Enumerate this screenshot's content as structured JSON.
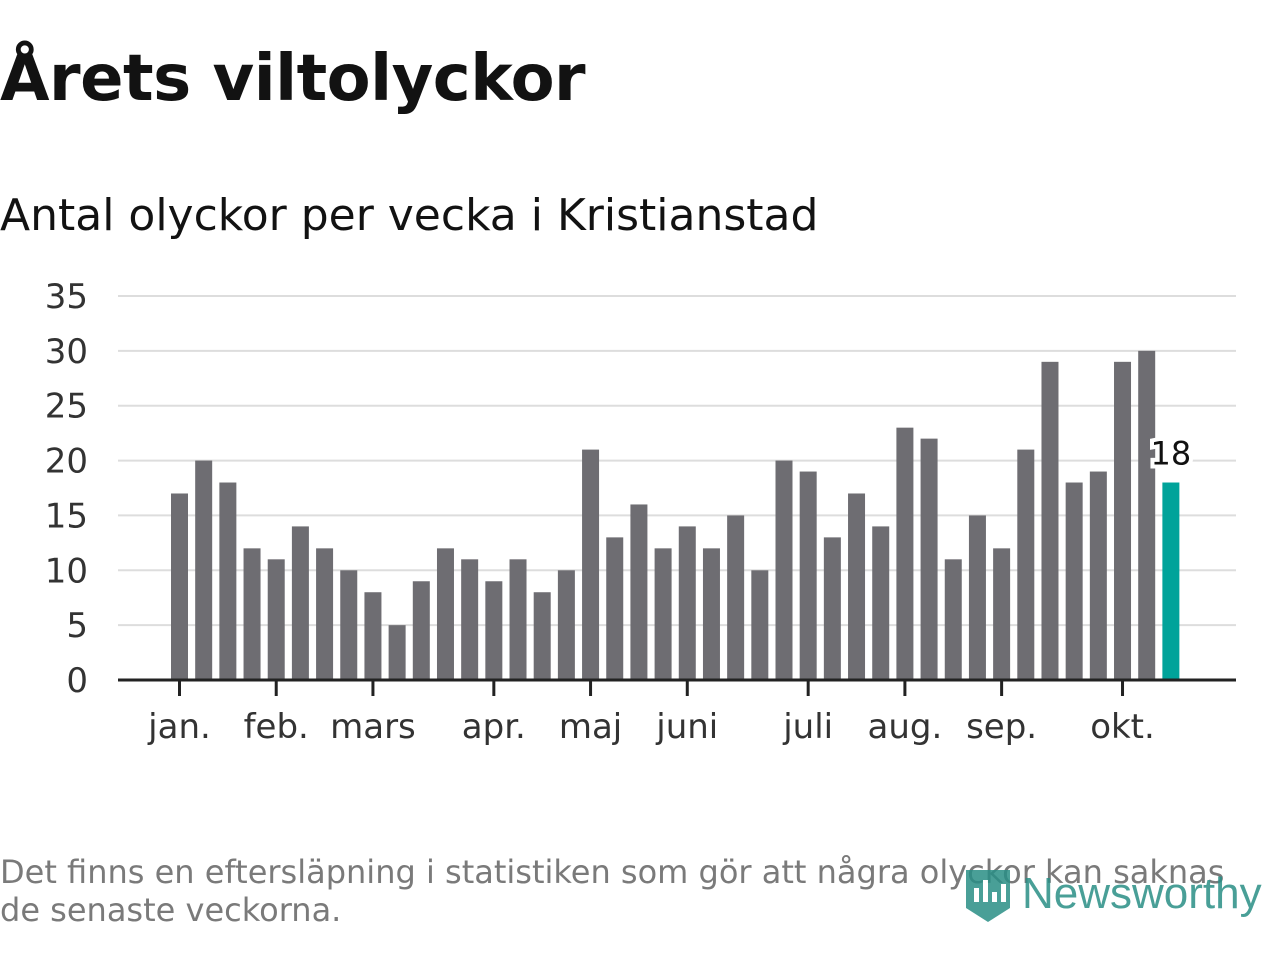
{
  "title": "Årets viltolyckor",
  "subtitle": "Antal olyckor per vecka i Kristianstad",
  "footnote": "Det finns en eftersläpning i statistiken som gör att några olyckor kan saknas de senaste veckorna.",
  "logo": {
    "text": "Newsworthy",
    "icon": "newsworthy-chart-icon"
  },
  "colors": {
    "bar": "#6e6d72",
    "highlight": "#00a39a",
    "grid": "#dddddd",
    "axis": "#222222"
  },
  "chart_data": {
    "type": "bar",
    "title": "Antal olyckor per vecka i Kristianstad",
    "xlabel": "",
    "ylabel": "",
    "ylim": [
      0,
      35
    ],
    "yticks": [
      0,
      5,
      10,
      15,
      20,
      25,
      30,
      35
    ],
    "grid": true,
    "weeks": [
      1,
      2,
      3,
      4,
      5,
      6,
      7,
      8,
      9,
      10,
      11,
      12,
      13,
      14,
      15,
      16,
      17,
      18,
      19,
      20,
      21,
      22,
      23,
      24,
      25,
      26,
      27,
      28,
      29,
      30,
      31,
      32,
      33,
      34,
      35,
      36,
      37,
      38,
      39,
      40,
      41,
      42
    ],
    "values": [
      17,
      20,
      18,
      12,
      11,
      14,
      12,
      10,
      8,
      5,
      9,
      12,
      11,
      9,
      11,
      8,
      10,
      21,
      13,
      16,
      12,
      14,
      12,
      15,
      10,
      20,
      19,
      13,
      17,
      14,
      23,
      22,
      11,
      15,
      12,
      21,
      29,
      18,
      19,
      29,
      30,
      18
    ],
    "highlight_index": 41,
    "highlight_label": "18",
    "month_ticks": [
      {
        "label": "jan.",
        "week": 1
      },
      {
        "label": "feb.",
        "week": 5
      },
      {
        "label": "mars",
        "week": 9
      },
      {
        "label": "apr.",
        "week": 14
      },
      {
        "label": "maj",
        "week": 18
      },
      {
        "label": "juni",
        "week": 22
      },
      {
        "label": "juli",
        "week": 27
      },
      {
        "label": "aug.",
        "week": 31
      },
      {
        "label": "sep.",
        "week": 35
      },
      {
        "label": "okt.",
        "week": 40
      }
    ]
  }
}
